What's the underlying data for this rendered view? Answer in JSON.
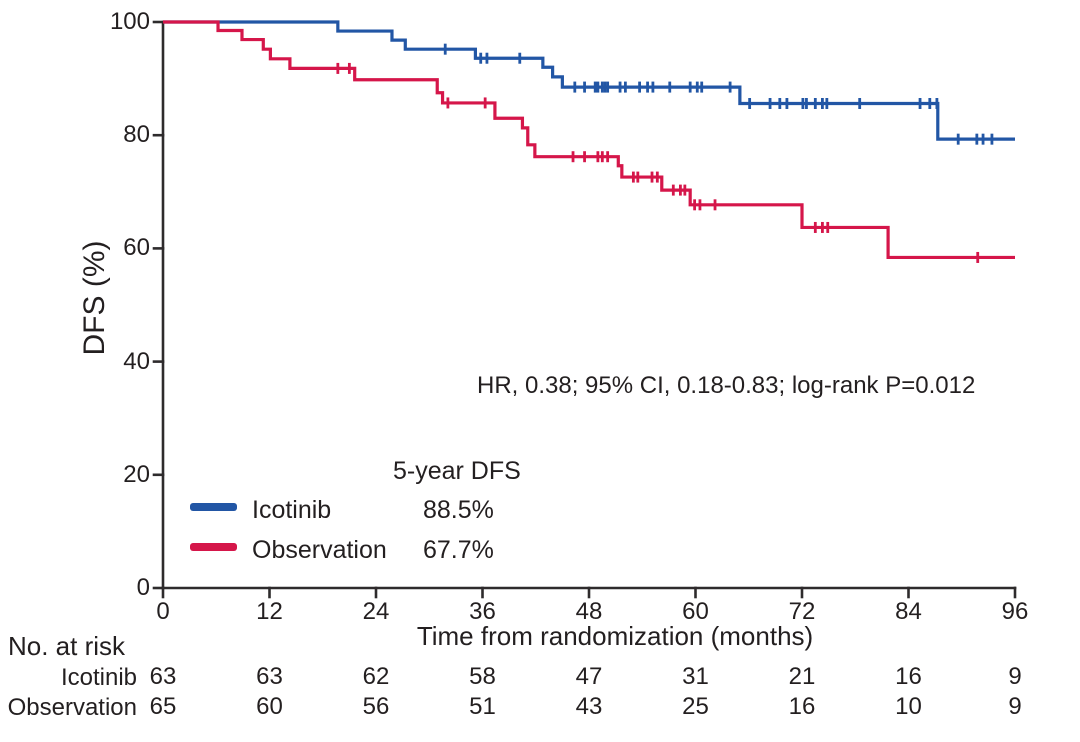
{
  "chart_data": {
    "type": "line",
    "subtype": "kaplan-meier-step",
    "title": "",
    "xlabel": "Time from randomization (months)",
    "ylabel": "DFS (%)",
    "xlim": [
      0,
      96
    ],
    "ylim": [
      0,
      100
    ],
    "x_ticks": [
      0,
      12,
      24,
      36,
      48,
      60,
      72,
      84,
      96
    ],
    "y_ticks": [
      0,
      20,
      40,
      60,
      80,
      100
    ],
    "grid": false,
    "legend_position": "inside-bottom-left",
    "legend_header": "5-year DFS",
    "annotation": "HR, 0.38; 95% CI, 0.18-0.83; log-rank P=0.012",
    "axis_color": "#2e2b2c",
    "text_color": "#231f20",
    "series": [
      {
        "name": "Icotinib",
        "color": "#2256a5",
        "five_year_dfs": "88.5%",
        "steps": [
          [
            0,
            100
          ],
          [
            19.7,
            98.4
          ],
          [
            25.8,
            96.8
          ],
          [
            27.3,
            95.2
          ],
          [
            35.2,
            93.6
          ],
          [
            42.8,
            92.0
          ],
          [
            43.9,
            90.3
          ],
          [
            45.0,
            88.5
          ],
          [
            65.0,
            85.6
          ],
          [
            87.3,
            79.3
          ]
        ],
        "censors": [
          [
            31.8,
            95.2
          ],
          [
            35.8,
            93.6
          ],
          [
            36.5,
            93.6
          ],
          [
            40.2,
            93.6
          ],
          [
            46.4,
            88.5
          ],
          [
            47.5,
            88.5
          ],
          [
            48.7,
            88.5
          ],
          [
            49.0,
            88.5
          ],
          [
            49.5,
            88.5
          ],
          [
            49.8,
            88.5
          ],
          [
            50.1,
            88.5
          ],
          [
            51.5,
            88.5
          ],
          [
            52.1,
            88.5
          ],
          [
            53.7,
            88.5
          ],
          [
            54.6,
            88.5
          ],
          [
            55.2,
            88.5
          ],
          [
            57.1,
            88.5
          ],
          [
            59.4,
            88.5
          ],
          [
            60.2,
            88.5
          ],
          [
            60.7,
            88.5
          ],
          [
            63.9,
            88.5
          ],
          [
            66.1,
            85.6
          ],
          [
            68.4,
            85.6
          ],
          [
            69.5,
            85.6
          ],
          [
            70.3,
            85.6
          ],
          [
            72.1,
            85.6
          ],
          [
            72.5,
            85.6
          ],
          [
            73.5,
            85.6
          ],
          [
            74.3,
            85.6
          ],
          [
            74.8,
            85.6
          ],
          [
            78.5,
            85.6
          ],
          [
            85.3,
            85.6
          ],
          [
            86.4,
            85.6
          ],
          [
            87.2,
            85.6
          ],
          [
            89.6,
            79.3
          ],
          [
            91.7,
            79.3
          ],
          [
            92.4,
            79.3
          ],
          [
            93.4,
            79.3
          ]
        ]
      },
      {
        "name": "Observation",
        "color": "#d5164a",
        "five_year_dfs": "67.7%",
        "steps": [
          [
            0,
            100
          ],
          [
            6.2,
            98.5
          ],
          [
            8.9,
            96.9
          ],
          [
            11.3,
            95.2
          ],
          [
            12.1,
            93.5
          ],
          [
            14.3,
            91.8
          ],
          [
            21.6,
            89.8
          ],
          [
            30.9,
            87.5
          ],
          [
            31.5,
            85.7
          ],
          [
            37.4,
            83.0
          ],
          [
            40.5,
            81.3
          ],
          [
            41.1,
            78.3
          ],
          [
            41.9,
            76.2
          ],
          [
            51.3,
            74.6
          ],
          [
            51.7,
            72.6
          ],
          [
            56.2,
            70.3
          ],
          [
            59.4,
            67.7
          ],
          [
            72.0,
            63.7
          ],
          [
            81.7,
            58.4
          ]
        ],
        "censors": [
          [
            19.7,
            91.8
          ],
          [
            21.0,
            91.8
          ],
          [
            32.1,
            85.7
          ],
          [
            36.3,
            85.7
          ],
          [
            46.2,
            76.2
          ],
          [
            47.5,
            76.2
          ],
          [
            49.0,
            76.2
          ],
          [
            49.5,
            76.2
          ],
          [
            50.1,
            76.2
          ],
          [
            53.0,
            72.6
          ],
          [
            53.5,
            72.6
          ],
          [
            55.1,
            72.6
          ],
          [
            55.7,
            72.6
          ],
          [
            57.5,
            70.3
          ],
          [
            58.3,
            70.3
          ],
          [
            58.8,
            70.3
          ],
          [
            59.9,
            67.7
          ],
          [
            60.5,
            67.7
          ],
          [
            62.2,
            67.7
          ],
          [
            73.5,
            63.7
          ],
          [
            74.3,
            63.7
          ],
          [
            74.9,
            63.7
          ],
          [
            91.8,
            58.4
          ]
        ]
      }
    ],
    "risk_table": {
      "title": "No. at risk",
      "months": [
        0,
        12,
        24,
        36,
        48,
        60,
        72,
        84,
        96
      ],
      "rows": [
        {
          "label": "Icotinib",
          "counts": [
            63,
            63,
            62,
            58,
            47,
            31,
            21,
            16,
            9
          ]
        },
        {
          "label": "Observation",
          "counts": [
            65,
            60,
            56,
            51,
            43,
            25,
            16,
            10,
            9
          ]
        }
      ]
    }
  }
}
